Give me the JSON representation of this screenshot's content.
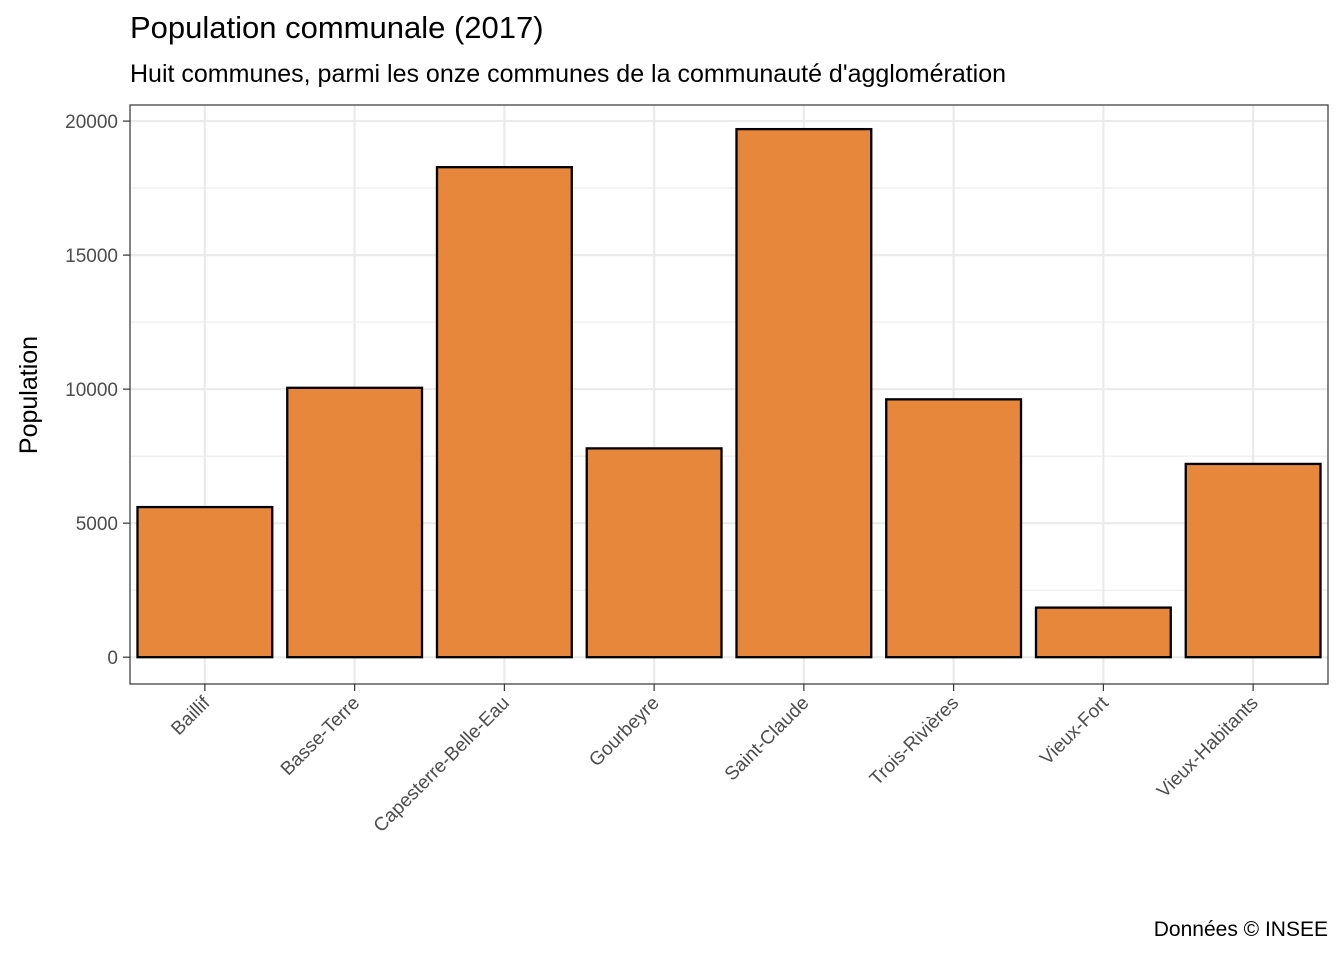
{
  "chart_data": {
    "type": "bar",
    "title": "Population communale (2017)",
    "subtitle": "Huit communes, parmi les onze communes de la communauté d'agglomération",
    "caption": "Données © INSEE",
    "xlabel": "",
    "ylabel": "Population",
    "categories": [
      "Baillif",
      "Basse-Terre",
      "Capesterre-Belle-Eau",
      "Gourbeyre",
      "Saint-Claude",
      "Trois-Rivières",
      "Vieux-Fort",
      "Vieux-Habitants"
    ],
    "values": [
      5600,
      10050,
      18280,
      7790,
      19700,
      9620,
      1850,
      7210
    ],
    "ylim": [
      -1000,
      20600
    ],
    "yticks": [
      0,
      5000,
      10000,
      15000,
      20000
    ],
    "grid": true,
    "legend": "none",
    "colors": {
      "bar_fill": "#E6873B",
      "bar_stroke": "#000000",
      "grid": "#EBEBEB",
      "panel_border": "#333333"
    }
  }
}
